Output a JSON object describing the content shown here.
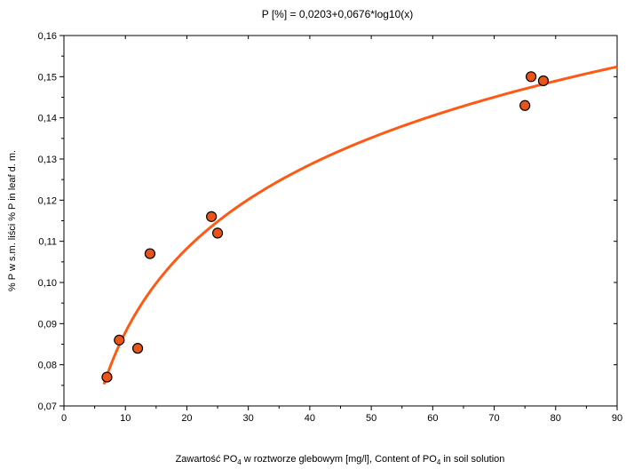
{
  "chart_data": {
    "type": "scatter",
    "title": "P [%] = 0,0203+0,0676*log10(x)",
    "xlabel": {
      "part1": "Zawartość PO",
      "sub1": "4",
      "part2": "  w roztworze glebowym [mg/l],",
      "part3": "    Content of PO",
      "sub2": "4",
      "part4": " in soil solution"
    },
    "ylabel": "% P w s.m. liści    % P in leaf d. m.",
    "xlim": [
      0,
      90
    ],
    "ylim": [
      0.07,
      0.16
    ],
    "x_ticks": [
      0,
      10,
      20,
      30,
      40,
      50,
      60,
      70,
      80,
      90
    ],
    "x_tick_labels": [
      "0",
      "10",
      "20",
      "30",
      "40",
      "50",
      "60",
      "70",
      "80",
      "90"
    ],
    "y_ticks": [
      0.07,
      0.08,
      0.09,
      0.1,
      0.11,
      0.12,
      0.13,
      0.14,
      0.15,
      0.16
    ],
    "y_tick_labels": [
      "0,07",
      "0,08",
      "0,09",
      "0,10",
      "0,11",
      "0,12",
      "0,13",
      "0,14",
      "0,15",
      "0,16"
    ],
    "grid": false,
    "points": [
      {
        "x": 7,
        "y": 0.077
      },
      {
        "x": 9,
        "y": 0.086
      },
      {
        "x": 12,
        "y": 0.084
      },
      {
        "x": 14,
        "y": 0.107
      },
      {
        "x": 24,
        "y": 0.116
      },
      {
        "x": 25,
        "y": 0.112
      },
      {
        "x": 75,
        "y": 0.143
      },
      {
        "x": 76,
        "y": 0.15
      },
      {
        "x": 78,
        "y": 0.149
      }
    ],
    "fit": {
      "intercept": 0.0203,
      "slope": 0.0676,
      "x_start": 6.5,
      "x_end": 90
    },
    "colors": {
      "curve": "#ff5a14",
      "point_fill": "#e8551a",
      "point_stroke": "#000000"
    }
  }
}
